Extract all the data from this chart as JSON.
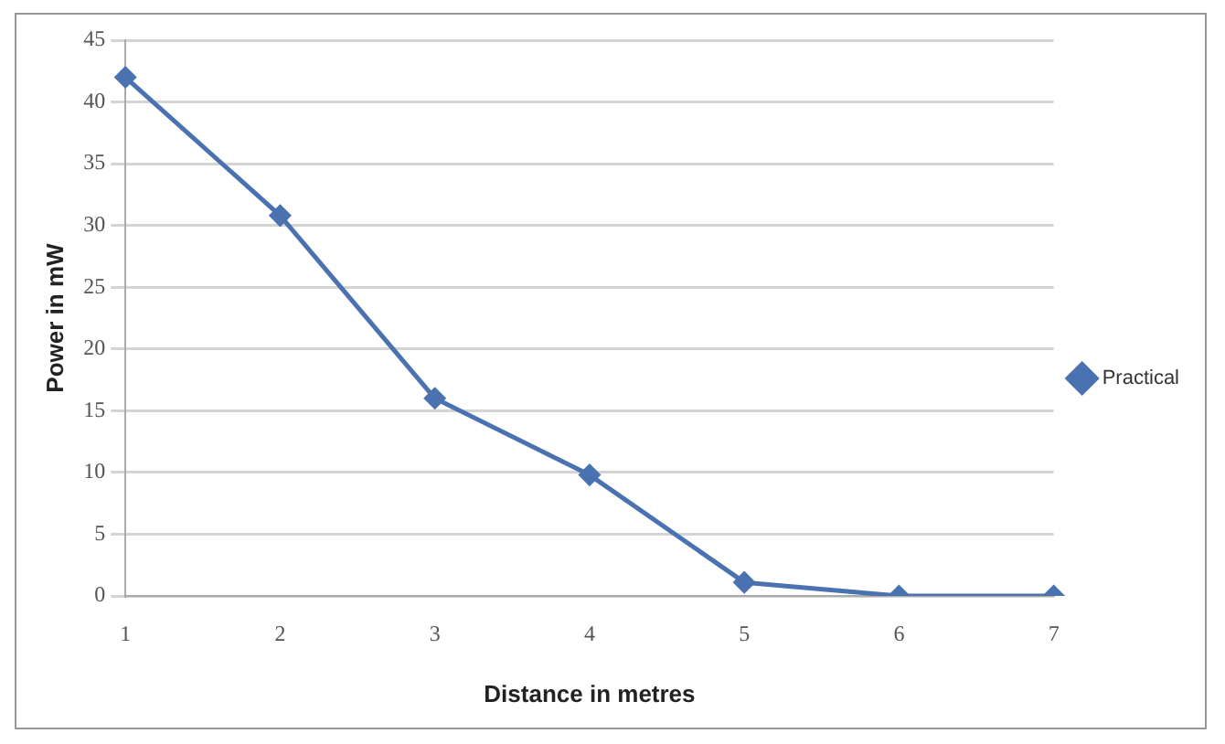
{
  "chart_data": {
    "type": "line",
    "xlabel": "Distance in metres",
    "ylabel": "Power in mW",
    "categories": [
      "1",
      "2",
      "3",
      "4",
      "5",
      "6",
      "7"
    ],
    "series": [
      {
        "name": "Practical",
        "color": "#4a72b0",
        "values": [
          42,
          30.8,
          16,
          9.8,
          1.1,
          0,
          0
        ]
      }
    ],
    "ylim": [
      0,
      45
    ],
    "yticks": [
      0,
      5,
      10,
      15,
      20,
      25,
      30,
      35,
      40,
      45
    ],
    "grid": "y",
    "legend": "right",
    "marker": "diamond",
    "line_style": "solid"
  }
}
